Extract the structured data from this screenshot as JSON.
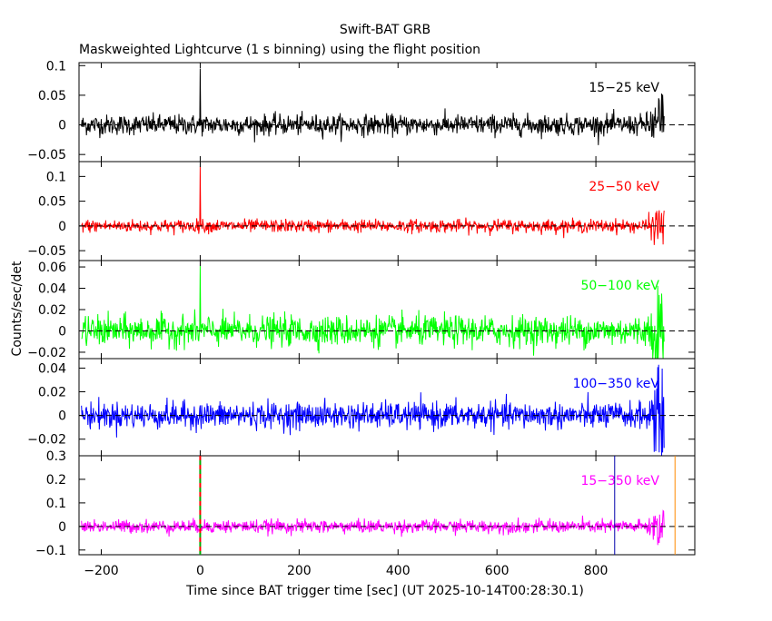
{
  "header": {
    "title": "Swift-BAT GRB",
    "subtitle": "Maskweighted Lightcurve (1 s binning) using the flight position"
  },
  "axes": {
    "xlabel": "Time since BAT trigger time [sec] (UT 2025-10-14T00:28:30.1)",
    "ylabel": "Counts/sec/det"
  },
  "chart_data": {
    "type": "line",
    "title": "Swift-BAT GRB",
    "subtitle": "Maskweighted Lightcurve (1 s binning) using the flight position",
    "xlabel": "Time since BAT trigger time [sec] (UT 2025-10-14T00:28:30.1)",
    "ylabel": "Counts/sec/det",
    "xlim": [
      -245,
      1000
    ],
    "x_ticks": [
      -200,
      0,
      200,
      400,
      600,
      800
    ],
    "x_tick_labels": [
      "−200",
      "0",
      "200",
      "400",
      "600",
      "800"
    ],
    "time_range": [
      -240,
      938
    ],
    "panels": [
      {
        "name": "15-25 keV",
        "label": "15−25 keV",
        "color": "#000000",
        "ylim": [
          -0.062,
          0.105
        ],
        "ticks": [
          -0.05,
          0,
          0.05,
          0.1
        ],
        "tick_labels": [
          "−0.05",
          "0",
          "0.05",
          "0.1"
        ],
        "noise_sigma": 0.0085,
        "spike": {
          "t": 0,
          "value": 0.095
        }
      },
      {
        "name": "25-50 keV",
        "label": "25−50 keV",
        "color": "#ff0000",
        "ylim": [
          -0.07,
          0.13
        ],
        "ticks": [
          -0.05,
          0,
          0.05,
          0.1
        ],
        "tick_labels": [
          "−0.05",
          "0",
          "0.05",
          "0.1"
        ],
        "noise_sigma": 0.0065,
        "spike": {
          "t": 0,
          "value": 0.12
        }
      },
      {
        "name": "50-100 keV",
        "label": "50−100 keV",
        "color": "#00ff00",
        "ylim": [
          -0.026,
          0.066
        ],
        "ticks": [
          -0.02,
          0,
          0.02,
          0.04,
          0.06
        ],
        "tick_labels": [
          "−0.02",
          "0",
          "0.02",
          "0.04",
          "0.06"
        ],
        "noise_sigma": 0.007,
        "spike": {
          "t": 0,
          "value": 0.061
        }
      },
      {
        "name": "100-350 keV",
        "label": "100−350 keV",
        "color": "#0000ff",
        "ylim": [
          -0.034,
          0.048
        ],
        "ticks": [
          -0.02,
          0,
          0.02,
          0.04
        ],
        "tick_labels": [
          "−0.02",
          "0",
          "0.02",
          "0.04"
        ],
        "noise_sigma": 0.0055,
        "spike": null
      },
      {
        "name": "15-350 keV",
        "label": "15−350 keV",
        "color": "#ff00ff",
        "ylim": [
          -0.12,
          0.3
        ],
        "ticks": [
          -0.1,
          0,
          0.1,
          0.2,
          0.3
        ],
        "tick_labels": [
          "−0.1",
          "0",
          "0.1",
          "0.2",
          "0.3"
        ],
        "noise_sigma": 0.014,
        "spike": {
          "t": 0,
          "value": 0.03
        }
      }
    ],
    "markers": [
      {
        "name": "trigger-time",
        "x": 0,
        "style": "dashed",
        "colors": [
          "#ff0000",
          "#00aa00"
        ]
      },
      {
        "name": "blue-marker",
        "x": 838,
        "style": "solid",
        "color": "#0000aa"
      },
      {
        "name": "orange-marker",
        "x": 960,
        "style": "solid",
        "color": "#ff8800"
      }
    ],
    "zero_line_style": "dashed"
  }
}
